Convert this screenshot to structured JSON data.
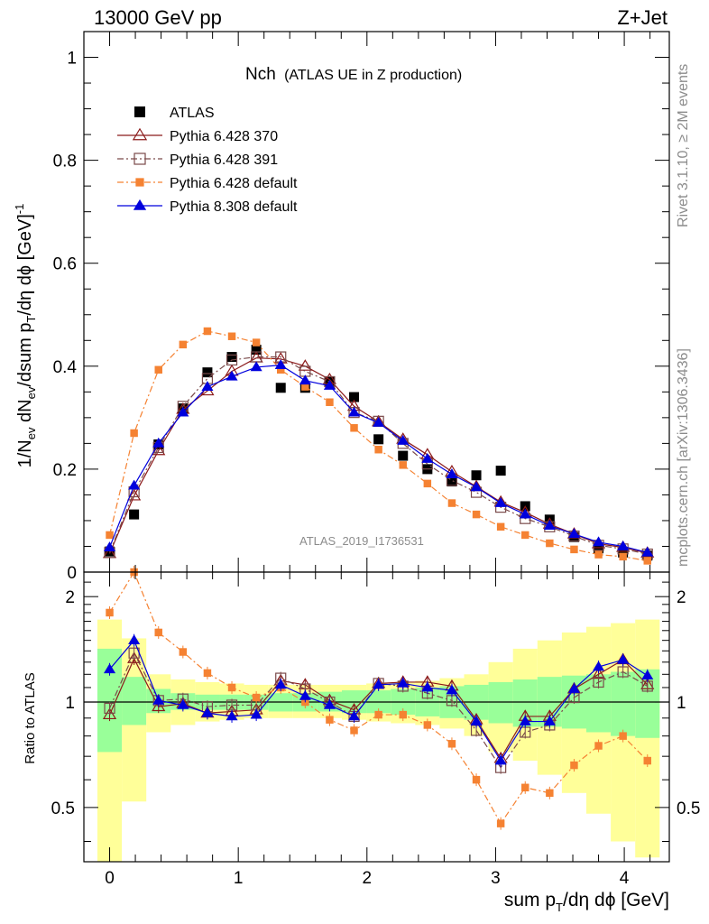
{
  "header": {
    "left": "13000 GeV pp",
    "right": "Z+Jet"
  },
  "side": {
    "rivet": "Rivet 3.1.10, ≥ 2M events",
    "mcplots": "mcplots.cern.ch [arXiv:1306.3436]"
  },
  "plot_title": {
    "main": "Nch",
    "sub": "(ATLAS UE in Z production)"
  },
  "watermark": "ATLAS_2019_I1736531",
  "ylabel_main": "1/N_ev dN_ev/dsum p_T/dη dϕ [GeV]^-1",
  "ylabel_ratio": "Ratio to ATLAS",
  "xlabel": "sum p_T/dη dϕ [GeV]",
  "chart_data": [
    {
      "type": "scatter",
      "panel": "main",
      "xlim": [
        -0.2,
        4.35
      ],
      "ylim": [
        0,
        1.05
      ],
      "xticks": [
        "0",
        "1",
        "2",
        "3",
        "4"
      ],
      "yticks": [
        "0",
        "0.2",
        "0.4",
        "0.6",
        "0.8",
        "1"
      ],
      "x": [
        0.0,
        0.19,
        0.38,
        0.57,
        0.76,
        0.95,
        1.14,
        1.33,
        1.52,
        1.71,
        1.9,
        2.09,
        2.28,
        2.47,
        2.66,
        2.85,
        3.04,
        3.23,
        3.42,
        3.61,
        3.8,
        3.99,
        4.18
      ],
      "series": [
        {
          "name": "ATLAS",
          "color": "#000000",
          "marker": "square",
          "values": [
            0.04,
            0.112,
            0.248,
            0.318,
            0.388,
            0.418,
            0.432,
            0.358,
            0.358,
            0.37,
            0.34,
            0.258,
            0.226,
            0.2,
            0.176,
            0.188,
            0.197,
            0.128,
            0.102,
            0.068,
            0.046,
            0.038,
            0.032
          ]
        },
        {
          "name": "Pythia 6.428 370",
          "color": "#8b1a1a",
          "marker": "triangle-open",
          "dash": "",
          "values": [
            0.036,
            0.148,
            0.236,
            0.316,
            0.352,
            0.39,
            0.416,
            0.414,
            0.4,
            0.374,
            0.322,
            0.292,
            0.258,
            0.228,
            0.195,
            0.166,
            0.136,
            0.116,
            0.093,
            0.074,
            0.055,
            0.048,
            0.037
          ]
        },
        {
          "name": "Pythia 6.428 391",
          "color": "#7a4a4a",
          "marker": "square-open",
          "dash": "7 3 2 3",
          "values": [
            0.038,
            0.156,
            0.242,
            0.322,
            0.376,
            0.412,
            0.418,
            0.418,
            0.39,
            0.37,
            0.31,
            0.293,
            0.25,
            0.21,
            0.178,
            0.155,
            0.126,
            0.104,
            0.088,
            0.07,
            0.052,
            0.045,
            0.035
          ]
        },
        {
          "name": "Pythia 6.428 default",
          "color": "#f58232",
          "marker": "square-small",
          "dash": "7 3 2 3",
          "values": [
            0.072,
            0.27,
            0.393,
            0.442,
            0.468,
            0.458,
            0.446,
            0.393,
            0.36,
            0.33,
            0.28,
            0.238,
            0.208,
            0.172,
            0.134,
            0.112,
            0.088,
            0.072,
            0.056,
            0.044,
            0.034,
            0.03,
            0.022
          ]
        },
        {
          "name": "Pythia 8.308 default",
          "color": "#0000dd",
          "marker": "triangle",
          "dash": "",
          "values": [
            0.048,
            0.168,
            0.25,
            0.31,
            0.36,
            0.38,
            0.398,
            0.402,
            0.372,
            0.362,
            0.31,
            0.29,
            0.255,
            0.22,
            0.19,
            0.165,
            0.134,
            0.112,
            0.09,
            0.074,
            0.058,
            0.05,
            0.038
          ]
        }
      ]
    },
    {
      "type": "line",
      "panel": "ratio",
      "xlim": [
        -0.2,
        4.35
      ],
      "ylim": [
        0.35,
        2.35
      ],
      "xticks": [
        "0",
        "1",
        "2",
        "3",
        "4"
      ],
      "yticks": [
        "0.5",
        "1",
        "2"
      ],
      "x": [
        0.0,
        0.19,
        0.38,
        0.57,
        0.76,
        0.95,
        1.14,
        1.33,
        1.52,
        1.71,
        1.9,
        2.09,
        2.28,
        2.47,
        2.66,
        2.85,
        3.04,
        3.23,
        3.42,
        3.61,
        3.8,
        3.99,
        4.18
      ],
      "band_inner": [
        0.72,
        0.86,
        0.93,
        0.95,
        0.95,
        0.95,
        0.95,
        0.94,
        0.94,
        0.94,
        0.93,
        0.93,
        0.92,
        0.91,
        0.9,
        0.89,
        0.87,
        0.85,
        0.85,
        0.84,
        0.82,
        0.8,
        0.79
      ],
      "band_inner_hi": [
        1.42,
        1.18,
        1.09,
        1.06,
        1.05,
        1.05,
        1.05,
        1.06,
        1.06,
        1.07,
        1.08,
        1.08,
        1.09,
        1.1,
        1.11,
        1.12,
        1.14,
        1.16,
        1.18,
        1.19,
        1.2,
        1.22,
        1.24
      ],
      "band_outer": [
        0.3,
        0.52,
        0.82,
        0.86,
        0.88,
        0.89,
        0.9,
        0.9,
        0.9,
        0.9,
        0.89,
        0.88,
        0.87,
        0.86,
        0.84,
        0.8,
        0.72,
        0.68,
        0.62,
        0.55,
        0.48,
        0.4,
        0.36
      ],
      "band_outer_hi": [
        1.72,
        1.52,
        1.2,
        1.16,
        1.14,
        1.13,
        1.12,
        1.12,
        1.12,
        1.12,
        1.12,
        1.13,
        1.14,
        1.15,
        1.17,
        1.2,
        1.3,
        1.42,
        1.5,
        1.58,
        1.64,
        1.68,
        1.72
      ],
      "series": [
        {
          "name": "Pythia 6.428 370",
          "values": [
            0.92,
            1.33,
            0.97,
            0.99,
            0.93,
            0.94,
            0.95,
            1.15,
            1.12,
            1.01,
            0.95,
            1.13,
            1.14,
            1.14,
            1.11,
            0.89,
            0.69,
            0.91,
            0.91,
            1.09,
            1.2,
            1.32,
            1.12
          ]
        },
        {
          "name": "Pythia 6.428 391",
          "values": [
            0.96,
            1.38,
            1.01,
            1.02,
            0.97,
            0.98,
            0.98,
            1.17,
            1.09,
            1.0,
            0.91,
            1.13,
            1.11,
            1.06,
            1.01,
            0.83,
            0.65,
            0.82,
            0.86,
            1.03,
            1.14,
            1.22,
            1.11
          ]
        },
        {
          "name": "Pythia 6.428 default",
          "values": [
            1.8,
            2.4,
            1.58,
            1.39,
            1.21,
            1.1,
            1.03,
            1.1,
            1.0,
            0.89,
            0.83,
            0.92,
            0.92,
            0.86,
            0.76,
            0.6,
            0.45,
            0.57,
            0.55,
            0.66,
            0.75,
            0.8,
            0.68
          ]
        },
        {
          "name": "Pythia 8.308 default",
          "values": [
            1.24,
            1.5,
            1.01,
            0.98,
            0.93,
            0.91,
            0.92,
            1.12,
            1.04,
            0.98,
            0.91,
            1.12,
            1.13,
            1.1,
            1.08,
            0.88,
            0.68,
            0.88,
            0.88,
            1.09,
            1.26,
            1.32,
            1.19
          ]
        }
      ]
    }
  ]
}
